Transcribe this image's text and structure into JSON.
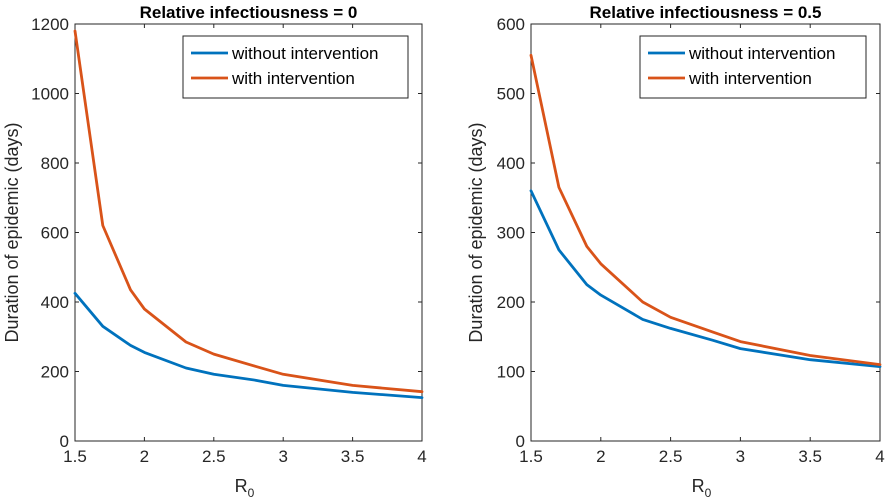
{
  "chart_data": [
    {
      "type": "line",
      "title": "Relative infectiousness = 0",
      "xlabel": "R",
      "xlabel_subscript": "0",
      "ylabel": "Duration of epidemic (days)",
      "xlim": [
        1.5,
        4
      ],
      "ylim": [
        0,
        1200
      ],
      "xticks": [
        1.5,
        2,
        2.5,
        3,
        3.5,
        4
      ],
      "xtick_labels": [
        "1.5",
        "2",
        "2.5",
        "3",
        "3.5",
        "4"
      ],
      "yticks": [
        0,
        200,
        400,
        600,
        800,
        1000,
        1200
      ],
      "ytick_labels": [
        "0",
        "200",
        "400",
        "600",
        "800",
        "1000",
        "1200"
      ],
      "legend_position": "top-right",
      "x": [
        1.5,
        1.7,
        1.9,
        2.0,
        2.3,
        2.5,
        2.8,
        3.0,
        3.5,
        4.0
      ],
      "series": [
        {
          "name": "without intervention",
          "color": "#0072BD",
          "values": [
            425,
            330,
            275,
            255,
            210,
            192,
            175,
            160,
            140,
            125
          ]
        },
        {
          "name": "with intervention",
          "color": "#D95319",
          "values": [
            1180,
            620,
            435,
            380,
            285,
            250,
            215,
            192,
            160,
            142
          ]
        }
      ]
    },
    {
      "type": "line",
      "title": "Relative infectiousness = 0.5",
      "xlabel": "R",
      "xlabel_subscript": "0",
      "ylabel": "Duration of epidemic (days)",
      "xlim": [
        1.5,
        4
      ],
      "ylim": [
        0,
        600
      ],
      "xticks": [
        1.5,
        2,
        2.5,
        3,
        3.5,
        4
      ],
      "xtick_labels": [
        "1.5",
        "2",
        "2.5",
        "3",
        "3.5",
        "4"
      ],
      "yticks": [
        0,
        100,
        200,
        300,
        400,
        500,
        600
      ],
      "ytick_labels": [
        "0",
        "100",
        "200",
        "300",
        "400",
        "500",
        "600"
      ],
      "legend_position": "top-right",
      "x": [
        1.5,
        1.7,
        1.9,
        2.0,
        2.3,
        2.5,
        2.8,
        3.0,
        3.5,
        4.0
      ],
      "series": [
        {
          "name": "without intervention",
          "color": "#0072BD",
          "values": [
            360,
            275,
            225,
            210,
            175,
            162,
            145,
            133,
            117,
            107
          ]
        },
        {
          "name": "with intervention",
          "color": "#D95319",
          "values": [
            555,
            365,
            280,
            255,
            200,
            178,
            157,
            143,
            123,
            110
          ]
        }
      ]
    }
  ]
}
